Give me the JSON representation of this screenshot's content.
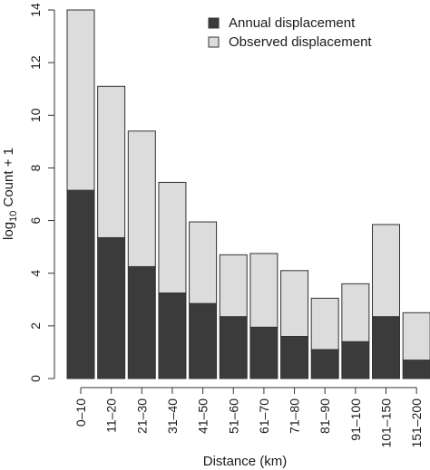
{
  "chart_data": {
    "type": "bar",
    "stacked": true,
    "categories": [
      "0–10",
      "11–20",
      "21–30",
      "31–40",
      "41–50",
      "51–60",
      "61–70",
      "71–80",
      "81–90",
      "91–100",
      "101–150",
      "151–200"
    ],
    "series": [
      {
        "name": "Annual displacement",
        "color": "#3b3b3b",
        "values": [
          7.15,
          5.35,
          4.25,
          3.25,
          2.85,
          2.35,
          1.95,
          1.6,
          1.1,
          1.4,
          2.35,
          0.7
        ]
      },
      {
        "name": "Observed displacement",
        "color": "#dcdcdc",
        "values": [
          6.85,
          5.75,
          5.15,
          4.2,
          3.1,
          2.35,
          2.8,
          2.5,
          1.95,
          2.2,
          3.5,
          1.8
        ]
      }
    ],
    "ylabel": {
      "prefix": "log",
      "sub": "10",
      "suffix": " Count + 1"
    },
    "xlabel": "Distance (km)",
    "ylim": [
      0,
      14
    ],
    "yticks": [
      0,
      2,
      4,
      6,
      8,
      10,
      12,
      14
    ],
    "legend_position": "top-right",
    "grid": false
  }
}
